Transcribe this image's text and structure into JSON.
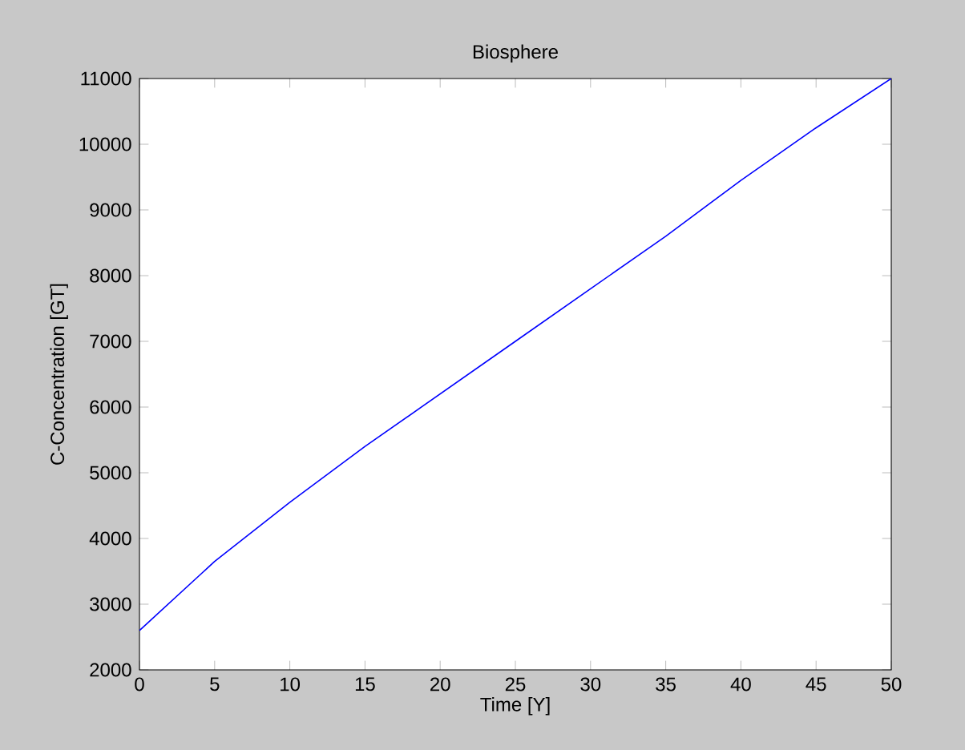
{
  "chart_data": {
    "type": "line",
    "title": "Biosphere",
    "xlabel": "Time [Y]",
    "ylabel": "C-Concentration [GT]",
    "x": [
      0,
      5,
      10,
      15,
      20,
      25,
      30,
      35,
      40,
      45,
      50
    ],
    "series": [
      {
        "color": "#0000ff",
        "values": [
          2600,
          3650,
          4550,
          5400,
          6200,
          7000,
          7800,
          8600,
          9450,
          10250,
          11000
        ]
      }
    ],
    "xlim": [
      0,
      50
    ],
    "ylim": [
      2000,
      11000
    ],
    "xticks": [
      0,
      5,
      10,
      15,
      20,
      25,
      30,
      35,
      40,
      45,
      50
    ],
    "yticks": [
      2000,
      3000,
      4000,
      5000,
      6000,
      7000,
      8000,
      9000,
      10000,
      11000
    ]
  }
}
